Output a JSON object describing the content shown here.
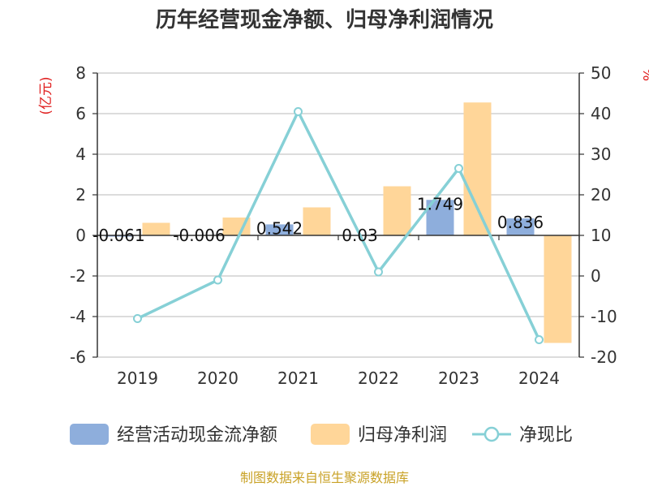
{
  "chart_data": {
    "type": "bar",
    "title": "历年经营现金净额、归母净利润情况",
    "categories": [
      "2019",
      "2020",
      "2021",
      "2022",
      "2023",
      "2024"
    ],
    "y_left": {
      "unit": "(亿元)",
      "ylim": [
        -6,
        8
      ],
      "ticks": [
        -6,
        -4,
        -2,
        0,
        2,
        4,
        6,
        8
      ]
    },
    "y_right": {
      "unit": "%",
      "ylim": [
        -20,
        50
      ],
      "ticks": [
        -20,
        -10,
        0,
        10,
        20,
        30,
        40,
        50
      ]
    },
    "series": [
      {
        "name": "经营活动现金流净额",
        "type": "bar",
        "axis": "left",
        "color": "#8eaedc",
        "values": [
          -0.061,
          -0.006,
          0.542,
          0.03,
          1.749,
          0.836
        ],
        "labels": [
          "-0.061",
          "-0.006",
          "0.542",
          "0.03",
          "1.749",
          "0.836"
        ]
      },
      {
        "name": "归母净利润",
        "type": "bar",
        "axis": "left",
        "color": "#ffd699",
        "values": [
          0.62,
          0.88,
          1.38,
          2.42,
          6.55,
          -5.3
        ]
      },
      {
        "name": "净现比",
        "type": "line",
        "axis": "right",
        "color": "#86d0d6",
        "values": [
          -10.5,
          -1.0,
          40.5,
          1.0,
          26.5,
          -15.7
        ]
      }
    ],
    "legend_position": "bottom",
    "grid": true,
    "source": "制图数据来自恒生聚源数据库"
  }
}
